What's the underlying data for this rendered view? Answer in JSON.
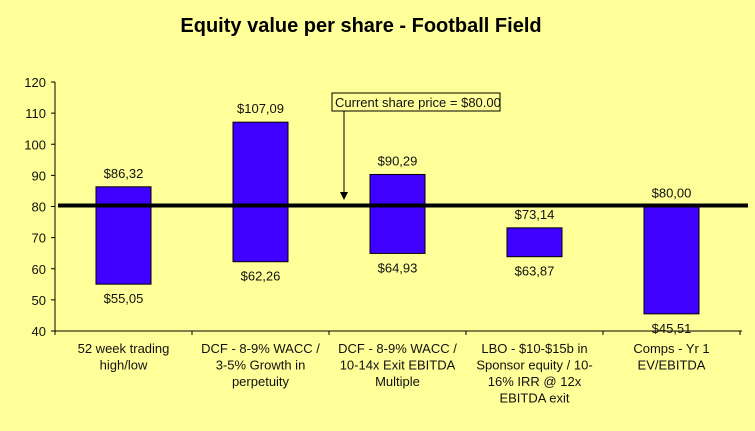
{
  "chart_data": {
    "type": "bar",
    "subtype": "floating-range",
    "title": "Equity value per share - Football Field",
    "xlabel": "",
    "ylabel": "",
    "ylim": [
      40,
      120
    ],
    "yticks": [
      40,
      50,
      60,
      70,
      80,
      90,
      100,
      110,
      120
    ],
    "grid": false,
    "categories": [
      [
        "52 week trading",
        "high/low"
      ],
      [
        "DCF - 8-9% WACC /",
        "3-5% Growth in",
        "perpetuity"
      ],
      [
        "DCF - 8-9% WACC /",
        "10-14x Exit EBITDA",
        "Multiple"
      ],
      [
        "LBO - $10-$15b in",
        "Sponsor equity / 10-",
        "16% IRR @ 12x",
        "EBITDA exit"
      ],
      [
        "Comps - Yr 1",
        "EV/EBITDA"
      ]
    ],
    "low": [
      55.05,
      62.26,
      64.93,
      63.87,
      45.51
    ],
    "high": [
      86.32,
      107.09,
      90.29,
      73.14,
      80.0
    ],
    "low_labels": [
      "$55,05",
      "$62,26",
      "$64,93",
      "$63,87",
      "$45,51"
    ],
    "high_labels": [
      "$86,32",
      "$107,09",
      "$90,29",
      "$73,14",
      "$80,00"
    ],
    "reference_line": {
      "value": 80,
      "label": "Current share price = $80.00"
    },
    "colors": {
      "background": "#FFFF99",
      "bar": "#4000FF",
      "line": "#000000"
    }
  }
}
